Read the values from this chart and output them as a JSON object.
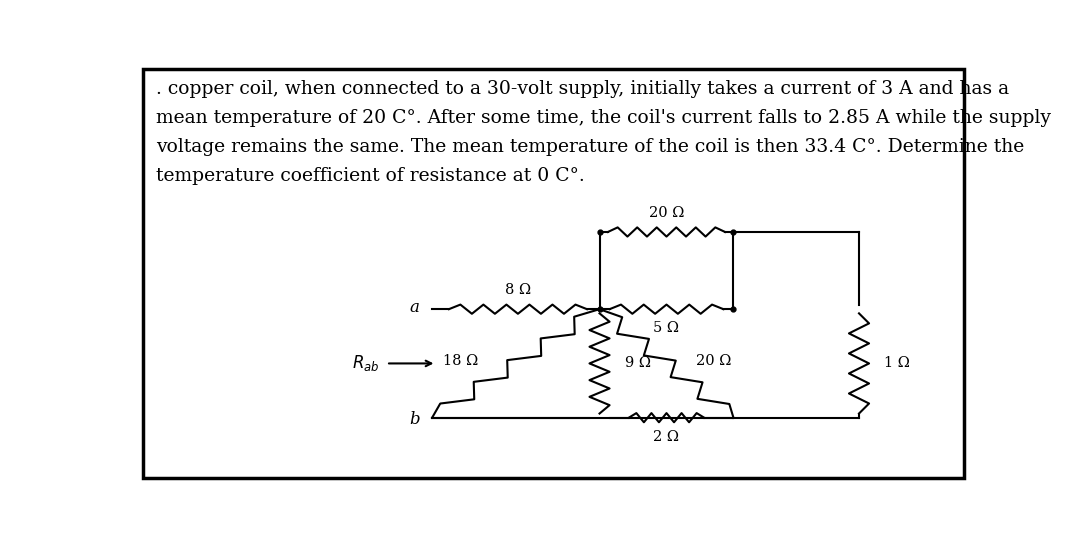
{
  "text_lines": [
    ". copper coil, when connected to a 30-volt supply, initially takes a current of 3 A and has a",
    "mean temperature of 20 C°. After some time, the coil's current falls to 2.85 A while the supply",
    "voltage remains the same. The mean temperature of the coil is then 33.4 C°. Determine the",
    "temperature coefficient of resistance at 0 C°."
  ],
  "font_size": 13.5,
  "background_color": "#ffffff",
  "xa": 0.355,
  "xM": 0.555,
  "xN": 0.715,
  "xR": 0.865,
  "yA": 0.415,
  "yB": 0.155,
  "yTop": 0.6,
  "yMid": 0.285,
  "lw": 1.5
}
